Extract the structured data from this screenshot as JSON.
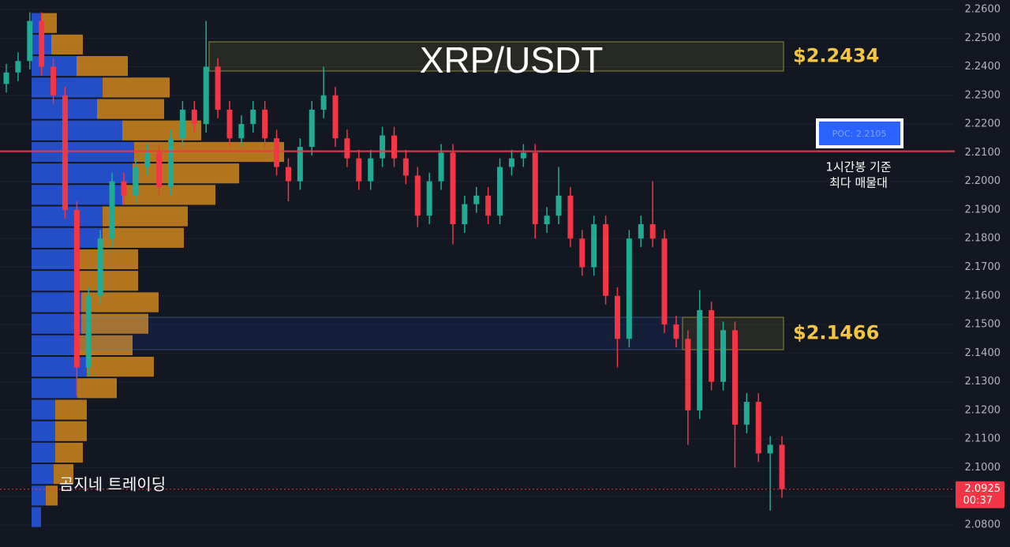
{
  "chart_data": {
    "type": "candlestick",
    "title": "XRP/USDT",
    "watermark": "곰지네 트레이딩",
    "up_color": "#22ab94",
    "down_color": "#f23645",
    "ylim": [
      2.0723,
      2.2633
    ],
    "yticks": [
      {
        "value": 2.26,
        "label": "2.2600"
      },
      {
        "value": 2.25,
        "label": "2.2500"
      },
      {
        "value": 2.24,
        "label": "2.2400"
      },
      {
        "value": 2.23,
        "label": "2.2300"
      },
      {
        "value": 2.22,
        "label": "2.2200"
      },
      {
        "value": 2.21,
        "label": "2.2100"
      },
      {
        "value": 2.2,
        "label": "2.2000"
      },
      {
        "value": 2.19,
        "label": "2.1900"
      },
      {
        "value": 2.18,
        "label": "2.1800"
      },
      {
        "value": 2.17,
        "label": "2.1700"
      },
      {
        "value": 2.16,
        "label": "2.1600"
      },
      {
        "value": 2.15,
        "label": "2.1500"
      },
      {
        "value": 2.14,
        "label": "2.1400"
      },
      {
        "value": 2.13,
        "label": "2.1300"
      },
      {
        "value": 2.12,
        "label": "2.1200"
      },
      {
        "value": 2.11,
        "label": "2.1100"
      },
      {
        "value": 2.1,
        "label": "2.1000"
      },
      {
        "value": 2.09,
        "label": "2.0900"
      },
      {
        "value": 2.08,
        "label": "2.0800"
      }
    ],
    "grid": true,
    "open": [
      2.234,
      2.238,
      2.242,
      2.256,
      2.24,
      2.23,
      2.19,
      2.135,
      2.16,
      2.18,
      2.2,
      2.195,
      2.205,
      2.21,
      2.198,
      2.215,
      2.225,
      2.22,
      2.24,
      2.225,
      2.215,
      2.22,
      2.225,
      2.215,
      2.205,
      2.2,
      2.212,
      2.225,
      2.23,
      2.215,
      2.208,
      2.2,
      2.208,
      2.216,
      2.208,
      2.202,
      2.188,
      2.2,
      2.21,
      2.185,
      2.192,
      2.195,
      2.188,
      2.205,
      2.208,
      2.21,
      2.185,
      2.188,
      2.195,
      2.18,
      2.17,
      2.185,
      2.16,
      2.145,
      2.18,
      2.185,
      2.18,
      2.15,
      2.145,
      2.12,
      2.155,
      2.13,
      2.148,
      2.115,
      2.123,
      2.105,
      2.108
    ],
    "high": [
      2.241,
      2.245,
      2.259,
      2.259,
      2.243,
      2.233,
      2.193,
      2.163,
      2.183,
      2.203,
      2.203,
      2.208,
      2.213,
      2.213,
      2.218,
      2.228,
      2.228,
      2.256,
      2.243,
      2.228,
      2.223,
      2.228,
      2.228,
      2.218,
      2.208,
      2.215,
      2.228,
      2.24,
      2.233,
      2.218,
      2.211,
      2.211,
      2.219,
      2.219,
      2.211,
      2.205,
      2.203,
      2.213,
      2.213,
      2.195,
      2.198,
      2.198,
      2.208,
      2.211,
      2.213,
      2.213,
      2.191,
      2.205,
      2.198,
      2.183,
      2.188,
      2.188,
      2.163,
      2.183,
      2.188,
      2.2,
      2.183,
      2.153,
      2.148,
      2.162,
      2.158,
      2.151,
      2.151,
      2.126,
      2.126,
      2.111,
      2.111
    ],
    "low": [
      2.231,
      2.235,
      2.239,
      2.237,
      2.227,
      2.187,
      2.125,
      2.132,
      2.157,
      2.177,
      2.192,
      2.192,
      2.202,
      2.195,
      2.195,
      2.212,
      2.217,
      2.217,
      2.222,
      2.212,
      2.212,
      2.217,
      2.212,
      2.202,
      2.193,
      2.197,
      2.209,
      2.222,
      2.212,
      2.205,
      2.197,
      2.197,
      2.205,
      2.205,
      2.199,
      2.184,
      2.185,
      2.197,
      2.178,
      2.182,
      2.189,
      2.185,
      2.185,
      2.202,
      2.205,
      2.18,
      2.182,
      2.185,
      2.177,
      2.167,
      2.167,
      2.157,
      2.135,
      2.142,
      2.177,
      2.177,
      2.147,
      2.142,
      2.108,
      2.117,
      2.127,
      2.127,
      2.1,
      2.112,
      2.102,
      2.085,
      2.0895
    ],
    "close": [
      2.238,
      2.242,
      2.256,
      2.24,
      2.23,
      2.19,
      2.135,
      2.16,
      2.18,
      2.2,
      2.195,
      2.205,
      2.21,
      2.198,
      2.215,
      2.225,
      2.22,
      2.24,
      2.225,
      2.215,
      2.22,
      2.225,
      2.215,
      2.205,
      2.2,
      2.212,
      2.225,
      2.23,
      2.215,
      2.208,
      2.2,
      2.208,
      2.216,
      2.208,
      2.202,
      2.188,
      2.2,
      2.21,
      2.185,
      2.192,
      2.195,
      2.188,
      2.205,
      2.208,
      2.21,
      2.185,
      2.188,
      2.195,
      2.18,
      2.17,
      2.185,
      2.16,
      2.145,
      2.18,
      2.185,
      2.18,
      2.15,
      2.145,
      2.12,
      2.155,
      2.13,
      2.148,
      2.115,
      2.123,
      2.105,
      2.108,
      2.0925
    ],
    "volume_profile": {
      "bins": [
        2.259,
        2.2515,
        2.244,
        2.2365,
        2.229,
        2.2215,
        2.214,
        2.2065,
        2.199,
        2.1915,
        2.184,
        2.1765,
        2.169,
        2.1615,
        2.154,
        2.1465,
        2.139,
        2.1315,
        2.124,
        2.1165,
        2.109,
        2.1015,
        2.094,
        2.0865,
        2.079
      ],
      "buy": [
        12,
        25,
        57,
        90,
        83,
        115,
        130,
        128,
        115,
        90,
        90,
        57,
        57,
        63,
        63,
        58,
        70,
        58,
        30,
        30,
        30,
        28,
        18,
        12
      ],
      "sell": [
        20,
        40,
        65,
        85,
        85,
        100,
        190,
        135,
        118,
        108,
        103,
        78,
        78,
        98,
        85,
        70,
        85,
        50,
        40,
        40,
        35,
        25,
        15,
        0
      ],
      "buy_color": "#2962ff",
      "sell_color": "#e8961e"
    },
    "zones": [
      {
        "label": "$2.2434",
        "top": 2.2487,
        "bottom": 2.2385
      },
      {
        "label": "$2.1466",
        "top": 2.1525,
        "bottom": 2.1412
      }
    ],
    "poc": {
      "value": 2.2105,
      "label": "POC: 2.2105"
    },
    "poc_note": [
      "1시간봉 기준",
      "최다 매물대"
    ],
    "last_price": {
      "value": 2.0925,
      "label": "2.0925"
    },
    "countdown": "00:37"
  }
}
